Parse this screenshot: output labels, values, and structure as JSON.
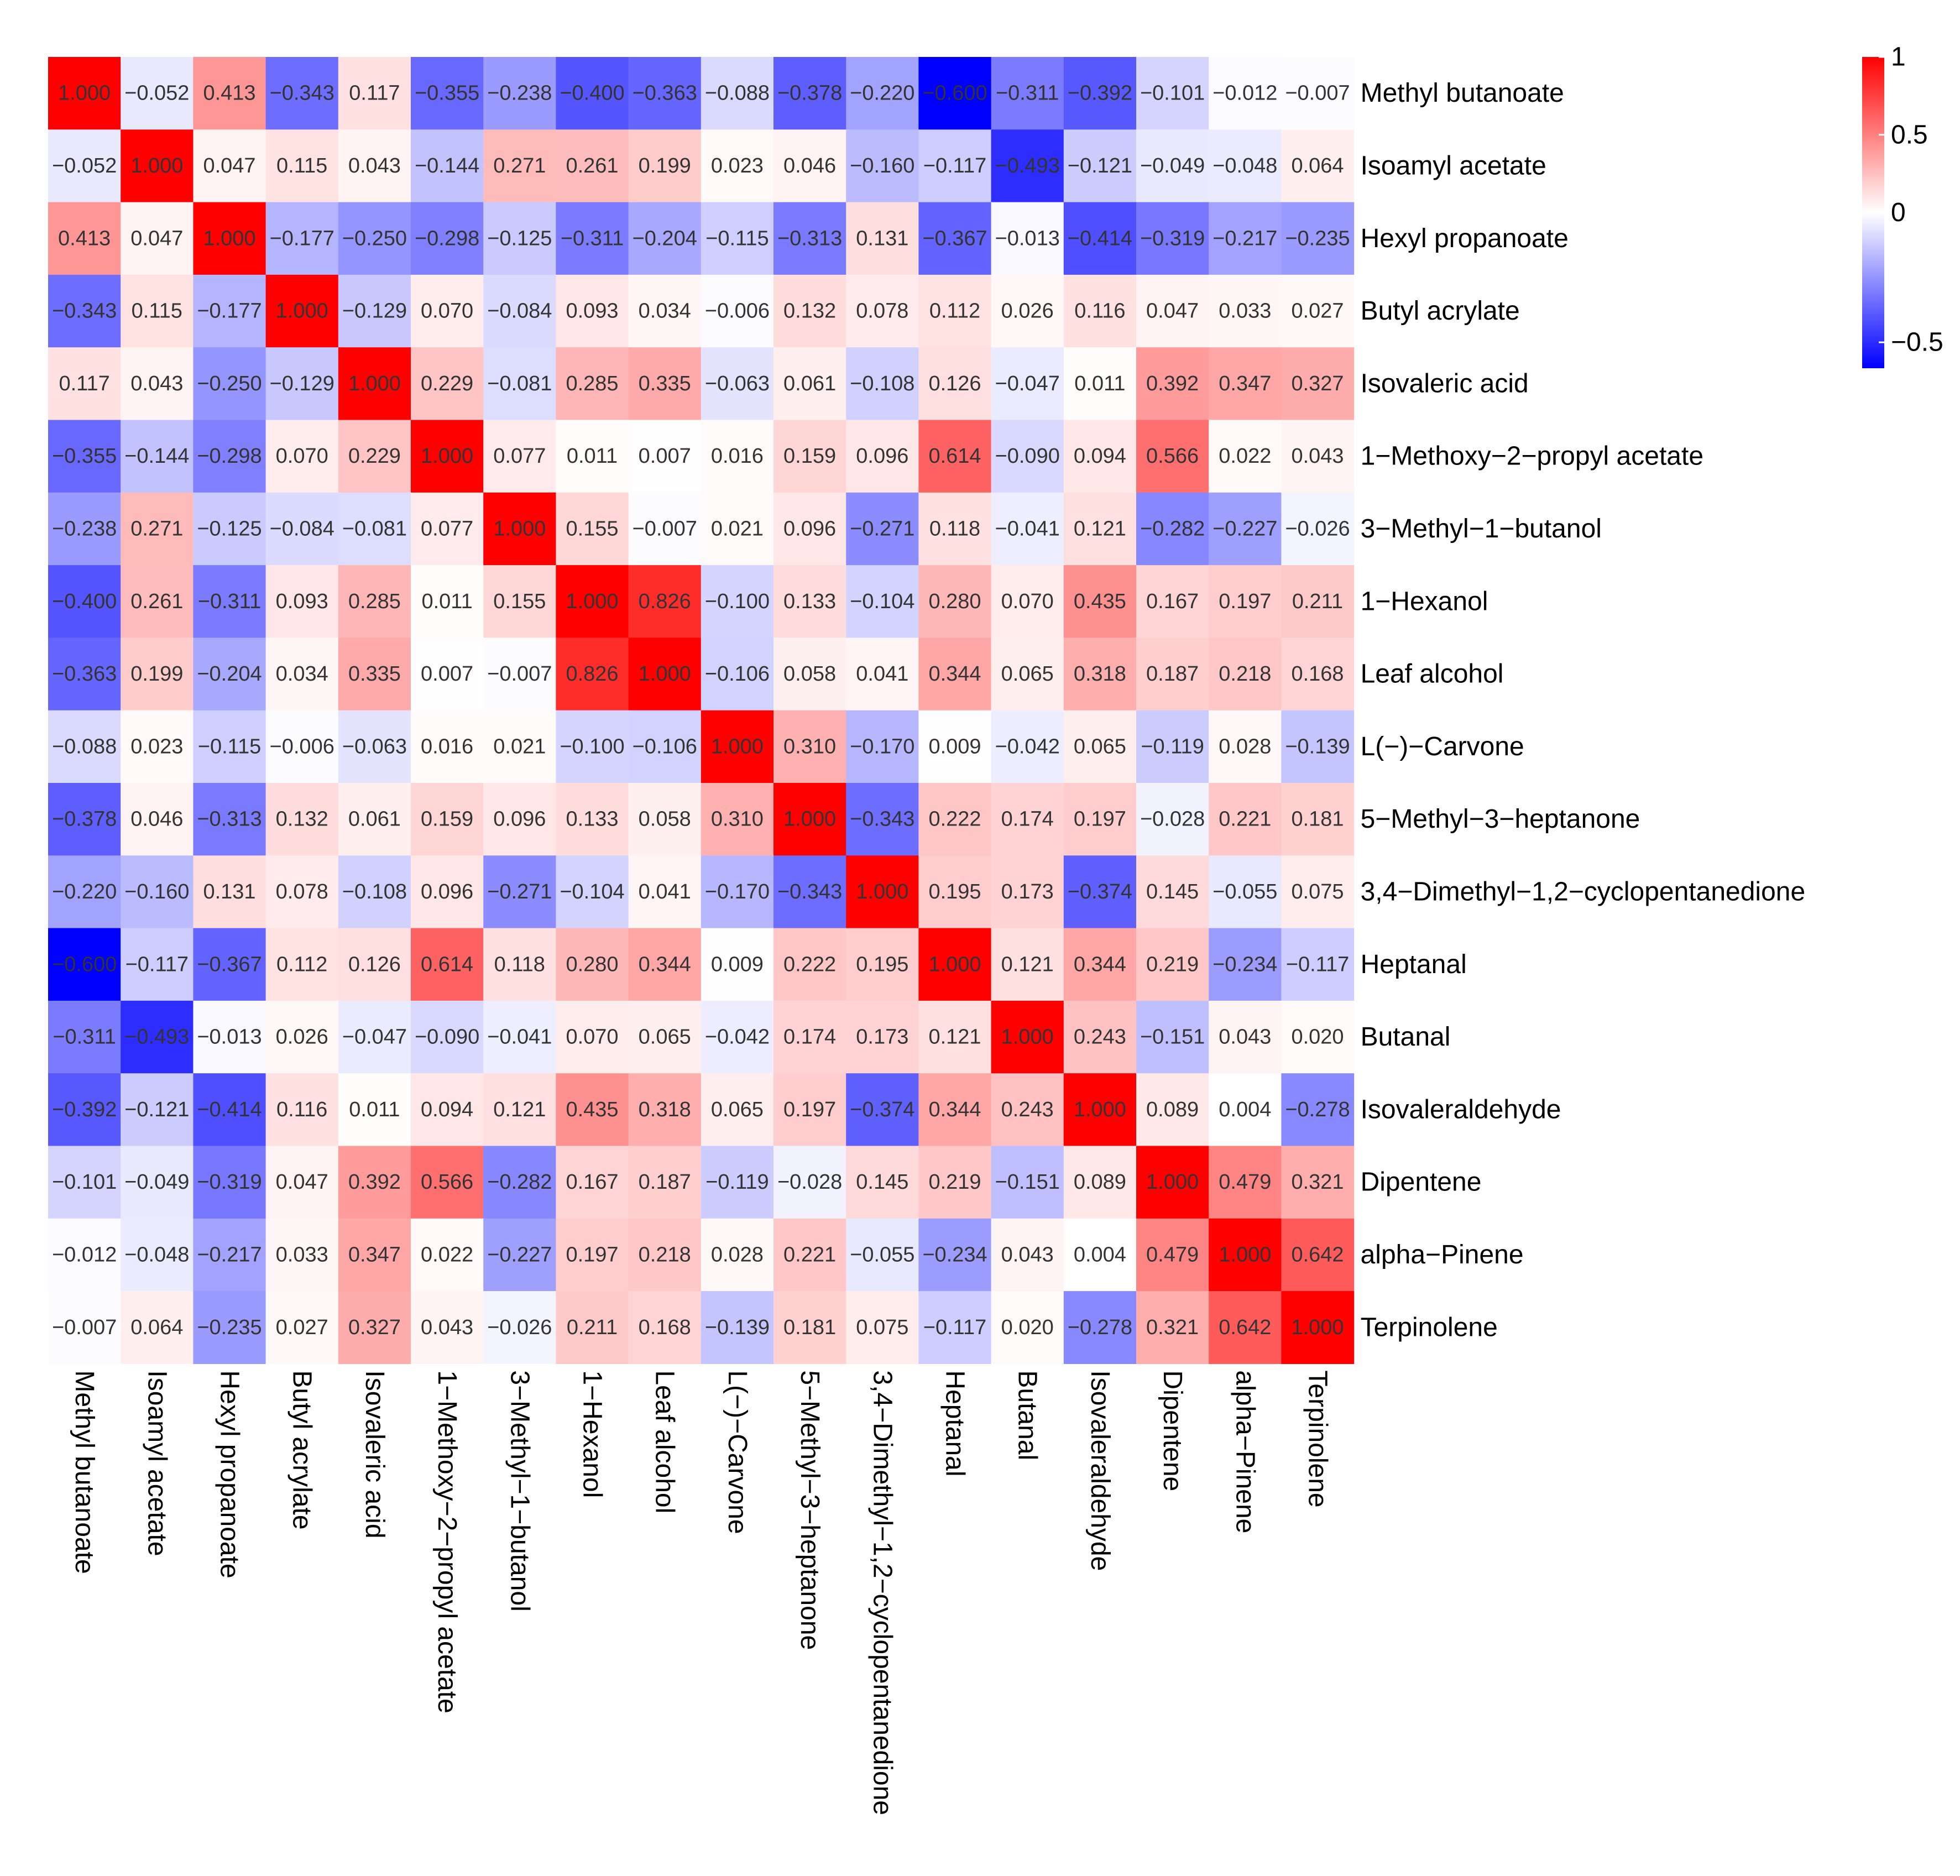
{
  "chart_data": {
    "type": "heatmap",
    "labels": [
      "Methyl butanoate",
      "Isoamyl acetate",
      "Hexyl propanoate",
      "Butyl acrylate",
      "Isovaleric acid",
      "1−Methoxy−2−propyl acetate",
      "3−Methyl−1−butanol",
      "1−Hexanol",
      "Leaf alcohol",
      "L(−)−Carvone",
      "5−Methyl−3−heptanone",
      "3,4−Dimethyl−1,2−cyclopentanedione",
      "Heptanal",
      "Butanal",
      "Isovaleraldehyde",
      "Dipentene",
      "alpha−Pinene",
      "Terpinolene"
    ],
    "cells": [
      [
        "1.000",
        "−0.052",
        "0.413",
        "−0.343",
        "0.117",
        "−0.355",
        "−0.238",
        "−0.400",
        "−0.363",
        "−0.088",
        "−0.378",
        "−0.220",
        "−0.600",
        "−0.311",
        "−0.392",
        "−0.101",
        "−0.012",
        "−0.007"
      ],
      [
        "−0.052",
        "1.000",
        "0.047",
        "0.115",
        "0.043",
        "−0.144",
        "0.271",
        "0.261",
        "0.199",
        "0.023",
        "0.046",
        "−0.160",
        "−0.117",
        "−0.493",
        "−0.121",
        "−0.049",
        "−0.048",
        "0.064"
      ],
      [
        "0.413",
        "0.047",
        "1.000",
        "−0.177",
        "−0.250",
        "−0.298",
        "−0.125",
        "−0.311",
        "−0.204",
        "−0.115",
        "−0.313",
        "0.131",
        "−0.367",
        "−0.013",
        "−0.414",
        "−0.319",
        "−0.217",
        "−0.235"
      ],
      [
        "−0.343",
        "0.115",
        "−0.177",
        "1.000",
        "−0.129",
        "0.070",
        "−0.084",
        "0.093",
        "0.034",
        "−0.006",
        "0.132",
        "0.078",
        "0.112",
        "0.026",
        "0.116",
        "0.047",
        "0.033",
        "0.027"
      ],
      [
        "0.117",
        "0.043",
        "−0.250",
        "−0.129",
        "1.000",
        "0.229",
        "−0.081",
        "0.285",
        "0.335",
        "−0.063",
        "0.061",
        "−0.108",
        "0.126",
        "−0.047",
        "0.011",
        "0.392",
        "0.347",
        "0.327"
      ],
      [
        "−0.355",
        "−0.144",
        "−0.298",
        "0.070",
        "0.229",
        "1.000",
        "0.077",
        "0.011",
        "0.007",
        "0.016",
        "0.159",
        "0.096",
        "0.614",
        "−0.090",
        "0.094",
        "0.566",
        "0.022",
        "0.043"
      ],
      [
        "−0.238",
        "0.271",
        "−0.125",
        "−0.084",
        "−0.081",
        "0.077",
        "1.000",
        "0.155",
        "−0.007",
        "0.021",
        "0.096",
        "−0.271",
        "0.118",
        "−0.041",
        "0.121",
        "−0.282",
        "−0.227",
        "−0.026"
      ],
      [
        "−0.400",
        "0.261",
        "−0.311",
        "0.093",
        "0.285",
        "0.011",
        "0.155",
        "1.000",
        "0.826",
        "−0.100",
        "0.133",
        "−0.104",
        "0.280",
        "0.070",
        "0.435",
        "0.167",
        "0.197",
        "0.211"
      ],
      [
        "−0.363",
        "0.199",
        "−0.204",
        "0.034",
        "0.335",
        "0.007",
        "−0.007",
        "0.826",
        "1.000",
        "−0.106",
        "0.058",
        "0.041",
        "0.344",
        "0.065",
        "0.318",
        "0.187",
        "0.218",
        "0.168"
      ],
      [
        "−0.088",
        "0.023",
        "−0.115",
        "−0.006",
        "−0.063",
        "0.016",
        "0.021",
        "−0.100",
        "−0.106",
        "1.000",
        "0.310",
        "−0.170",
        "0.009",
        "−0.042",
        "0.065",
        "−0.119",
        "0.028",
        "−0.139"
      ],
      [
        "−0.378",
        "0.046",
        "−0.313",
        "0.132",
        "0.061",
        "0.159",
        "0.096",
        "0.133",
        "0.058",
        "0.310",
        "1.000",
        "−0.343",
        "0.222",
        "0.174",
        "0.197",
        "−0.028",
        "0.221",
        "0.181"
      ],
      [
        "−0.220",
        "−0.160",
        "0.131",
        "0.078",
        "−0.108",
        "0.096",
        "−0.271",
        "−0.104",
        "0.041",
        "−0.170",
        "−0.343",
        "1.000",
        "0.195",
        "0.173",
        "−0.374",
        "0.145",
        "−0.055",
        "0.075"
      ],
      [
        "−0.600",
        "−0.117",
        "−0.367",
        "0.112",
        "0.126",
        "0.614",
        "0.118",
        "0.280",
        "0.344",
        "0.009",
        "0.222",
        "0.195",
        "1.000",
        "0.121",
        "0.344",
        "0.219",
        "−0.234",
        "−0.117"
      ],
      [
        "−0.311",
        "−0.493",
        "−0.013",
        "0.026",
        "−0.047",
        "−0.090",
        "−0.041",
        "0.070",
        "0.065",
        "−0.042",
        "0.174",
        "0.173",
        "0.121",
        "1.000",
        "0.243",
        "−0.151",
        "0.043",
        "0.020"
      ],
      [
        "−0.392",
        "−0.121",
        "−0.414",
        "0.116",
        "0.011",
        "0.094",
        "0.121",
        "0.435",
        "0.318",
        "0.065",
        "0.197",
        "−0.374",
        "0.344",
        "0.243",
        "1.000",
        "0.089",
        "0.004",
        "−0.278"
      ],
      [
        "−0.101",
        "−0.049",
        "−0.319",
        "0.047",
        "0.392",
        "0.566",
        "−0.282",
        "0.167",
        "0.187",
        "−0.119",
        "−0.028",
        "0.145",
        "0.219",
        "−0.151",
        "0.089",
        "1.000",
        "0.479",
        "0.321"
      ],
      [
        "−0.012",
        "−0.048",
        "−0.217",
        "0.033",
        "0.347",
        "0.022",
        "−0.227",
        "0.197",
        "0.218",
        "0.028",
        "0.221",
        "−0.055",
        "−0.234",
        "0.043",
        "0.004",
        "0.479",
        "1.000",
        "0.642"
      ],
      [
        "−0.007",
        "0.064",
        "−0.235",
        "0.027",
        "0.327",
        "0.043",
        "−0.026",
        "0.211",
        "0.168",
        "−0.139",
        "0.181",
        "0.075",
        "−0.117",
        "0.020",
        "−0.278",
        "0.321",
        "0.642",
        "1.000"
      ]
    ],
    "colorbar": {
      "ticks": [
        "1",
        "0.5",
        "0",
        "−0.5"
      ],
      "range": [
        -0.6,
        1.0
      ],
      "colors": {
        "low": "#0000ff",
        "mid": "#ffffff",
        "high": "#ff0000"
      }
    }
  }
}
